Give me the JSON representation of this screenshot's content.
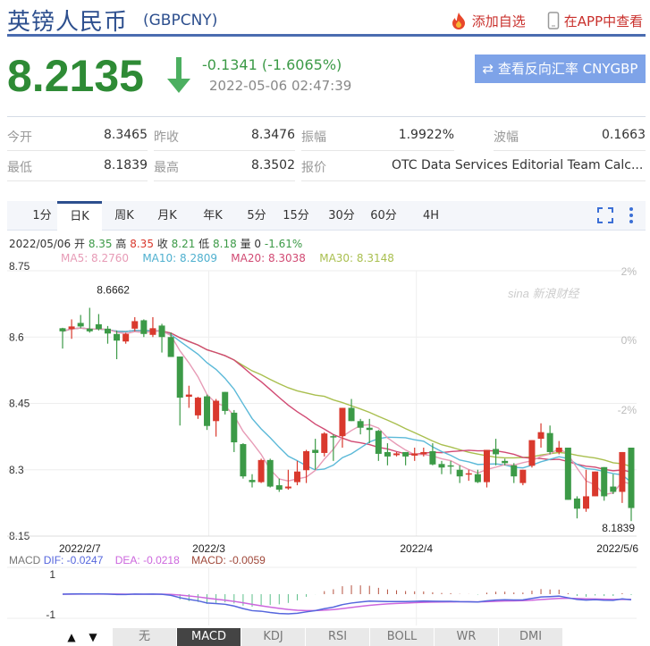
{
  "header": {
    "title": "英镑人民币",
    "code": "(GBPCNY)",
    "add_watch": "添加自选",
    "open_app": "在APP中查看",
    "icons": [
      "fire-icon",
      "phone-icon"
    ]
  },
  "quote": {
    "price": "8.2135",
    "direction": "down",
    "change": "-0.1341 (-1.6065%)",
    "time": "2022-05-06 02:47:39",
    "reverse_button": "⇄ 查看反向汇率 CNYGBP"
  },
  "colors": {
    "up": "#d9392d",
    "down": "#3c9a47",
    "title": "#2d4f8e",
    "ma5": "#e79bb6",
    "ma10": "#5bb9d8",
    "ma20": "#d14a73",
    "ma30": "#a9bf4f",
    "dif": "#5566dd",
    "dea": "#cc66dd"
  },
  "stats": [
    [
      {
        "label": "今开",
        "value": "8.3465"
      },
      {
        "label": "昨收",
        "value": "8.3476"
      },
      {
        "label": "振幅",
        "value": "1.9922%"
      },
      {
        "label": "波幅",
        "value": "0.1663"
      }
    ],
    [
      {
        "label": "最低",
        "value": "8.1839"
      },
      {
        "label": "最高",
        "value": "8.3502"
      },
      {
        "label": "报价",
        "value": "OTC Data Services Editorial Team Calc..."
      }
    ]
  ],
  "tabs": [
    "1分",
    "日K",
    "周K",
    "月K",
    "年K",
    "5分",
    "15分",
    "30分",
    "60分",
    "4H"
  ],
  "active_tab": "日K",
  "info": {
    "date": "2022/05/06",
    "open_label": "开",
    "open": "8.35",
    "high_label": "高",
    "high": "8.35",
    "close_label": "收",
    "close": "8.21",
    "low_label": "低",
    "low": "8.18",
    "vol_label": "量",
    "vol": "0",
    "pct": "-1.61%"
  },
  "ma_legend": {
    "ma5": "MA5: 8.2760",
    "ma10": "MA10: 8.2809",
    "ma20": "MA20: 8.3038",
    "ma30": "MA30: 8.3148"
  },
  "macd_legend": {
    "name": "MACD",
    "dif": "DIF: -0.0247",
    "dea": "DEA: -0.0218",
    "macd": "MACD: -0.0059"
  },
  "macd_axis": [
    "1",
    "-1"
  ],
  "bottom_tabs": [
    "无",
    "MACD",
    "KDJ",
    "RSI",
    "BOLL",
    "WR",
    "DMI"
  ],
  "active_bottom": "MACD",
  "watermark": "sina 新浪财经",
  "chart_data": {
    "type": "candlestick",
    "y_ticks": [
      "8.75",
      "8.6",
      "8.45",
      "8.3",
      "8.15"
    ],
    "ylim": [
      8.15,
      8.75
    ],
    "right_ticks": [
      "2%",
      "0%",
      "-2%"
    ],
    "x_ticks": [
      {
        "label": "2022/2/7",
        "index": 0
      },
      {
        "label": "2022/3",
        "index": 16
      },
      {
        "label": "2022/4",
        "index": 39
      },
      {
        "label": "2022/5/6",
        "index": 63
      }
    ],
    "max_label": "8.6662",
    "min_label": "8.1839",
    "ohlc": [
      [
        8.62,
        8.613,
        8.621,
        8.574
      ],
      [
        8.618,
        8.624,
        8.64,
        8.596
      ],
      [
        8.632,
        8.624,
        8.65,
        8.62
      ],
      [
        8.619,
        8.613,
        8.6662,
        8.61
      ],
      [
        8.629,
        8.618,
        8.652,
        8.615
      ],
      [
        8.619,
        8.608,
        8.625,
        8.585
      ],
      [
        8.607,
        8.592,
        8.615,
        8.55
      ],
      [
        8.59,
        8.607,
        8.61,
        8.585
      ],
      [
        8.619,
        8.636,
        8.645,
        8.613
      ],
      [
        8.638,
        8.607,
        8.64,
        8.6
      ],
      [
        8.605,
        8.62,
        8.645,
        8.6
      ],
      [
        8.626,
        8.6,
        8.63,
        8.565
      ],
      [
        8.6,
        8.555,
        8.61,
        8.555
      ],
      [
        8.556,
        8.463,
        8.556,
        8.4
      ],
      [
        8.465,
        8.47,
        8.49,
        8.44
      ],
      [
        8.423,
        8.463,
        8.465,
        8.415
      ],
      [
        8.466,
        8.399,
        8.47,
        8.39
      ],
      [
        8.41,
        8.456,
        8.46,
        8.375
      ],
      [
        8.476,
        8.433,
        8.476,
        8.425
      ],
      [
        8.429,
        8.362,
        8.435,
        8.34
      ],
      [
        8.358,
        8.285,
        8.36,
        8.28
      ],
      [
        8.277,
        8.272,
        8.29,
        8.26
      ],
      [
        8.272,
        8.322,
        8.325,
        8.27
      ],
      [
        8.322,
        8.262,
        8.325,
        8.26
      ],
      [
        8.265,
        8.255,
        8.28,
        8.25
      ],
      [
        8.258,
        8.262,
        8.3,
        8.255
      ],
      [
        8.272,
        8.296,
        8.32,
        8.265
      ],
      [
        8.299,
        8.342,
        8.345,
        8.27
      ],
      [
        8.345,
        8.338,
        8.37,
        8.3
      ],
      [
        8.338,
        8.382,
        8.385,
        8.33
      ],
      [
        8.376,
        8.374,
        8.38,
        8.32
      ],
      [
        8.376,
        8.44,
        8.44,
        8.35
      ],
      [
        8.44,
        8.41,
        8.46,
        8.41
      ],
      [
        8.41,
        8.395,
        8.415,
        8.38
      ],
      [
        8.395,
        8.39,
        8.415,
        8.36
      ],
      [
        8.388,
        8.336,
        8.39,
        8.32
      ],
      [
        8.34,
        8.33,
        8.36,
        8.31
      ],
      [
        8.333,
        8.337,
        8.34,
        8.33
      ],
      [
        8.34,
        8.33,
        8.34,
        8.31
      ],
      [
        8.332,
        8.337,
        8.35,
        8.32
      ],
      [
        8.335,
        8.34,
        8.35,
        8.33
      ],
      [
        8.342,
        8.312,
        8.36,
        8.31
      ],
      [
        8.313,
        8.305,
        8.32,
        8.29
      ],
      [
        8.31,
        8.309,
        8.32,
        8.29
      ],
      [
        8.3,
        8.285,
        8.31,
        8.27
      ],
      [
        8.29,
        8.292,
        8.3,
        8.275
      ],
      [
        8.29,
        8.272,
        8.3,
        8.27
      ],
      [
        8.272,
        8.345,
        8.345,
        8.26
      ],
      [
        8.347,
        8.335,
        8.37,
        8.31
      ],
      [
        8.32,
        8.315,
        8.325,
        8.31
      ],
      [
        8.31,
        8.285,
        8.315,
        8.27
      ],
      [
        8.27,
        8.3,
        8.3,
        8.265
      ],
      [
        8.309,
        8.367,
        8.367,
        8.305
      ],
      [
        8.37,
        8.385,
        8.405,
        8.35
      ],
      [
        8.383,
        8.34,
        8.4,
        8.335
      ],
      [
        8.34,
        8.35,
        8.365,
        8.335
      ],
      [
        8.35,
        8.232,
        8.35,
        8.232
      ],
      [
        8.235,
        8.212,
        8.24,
        8.19
      ],
      [
        8.212,
        8.24,
        8.3,
        8.205
      ],
      [
        8.24,
        8.296,
        8.296,
        8.24
      ],
      [
        8.306,
        8.24,
        8.306,
        8.23
      ],
      [
        8.262,
        8.25,
        8.29,
        8.245
      ],
      [
        8.25,
        8.34,
        8.34,
        8.225
      ],
      [
        8.35,
        8.2135,
        8.35,
        8.1839
      ]
    ]
  }
}
